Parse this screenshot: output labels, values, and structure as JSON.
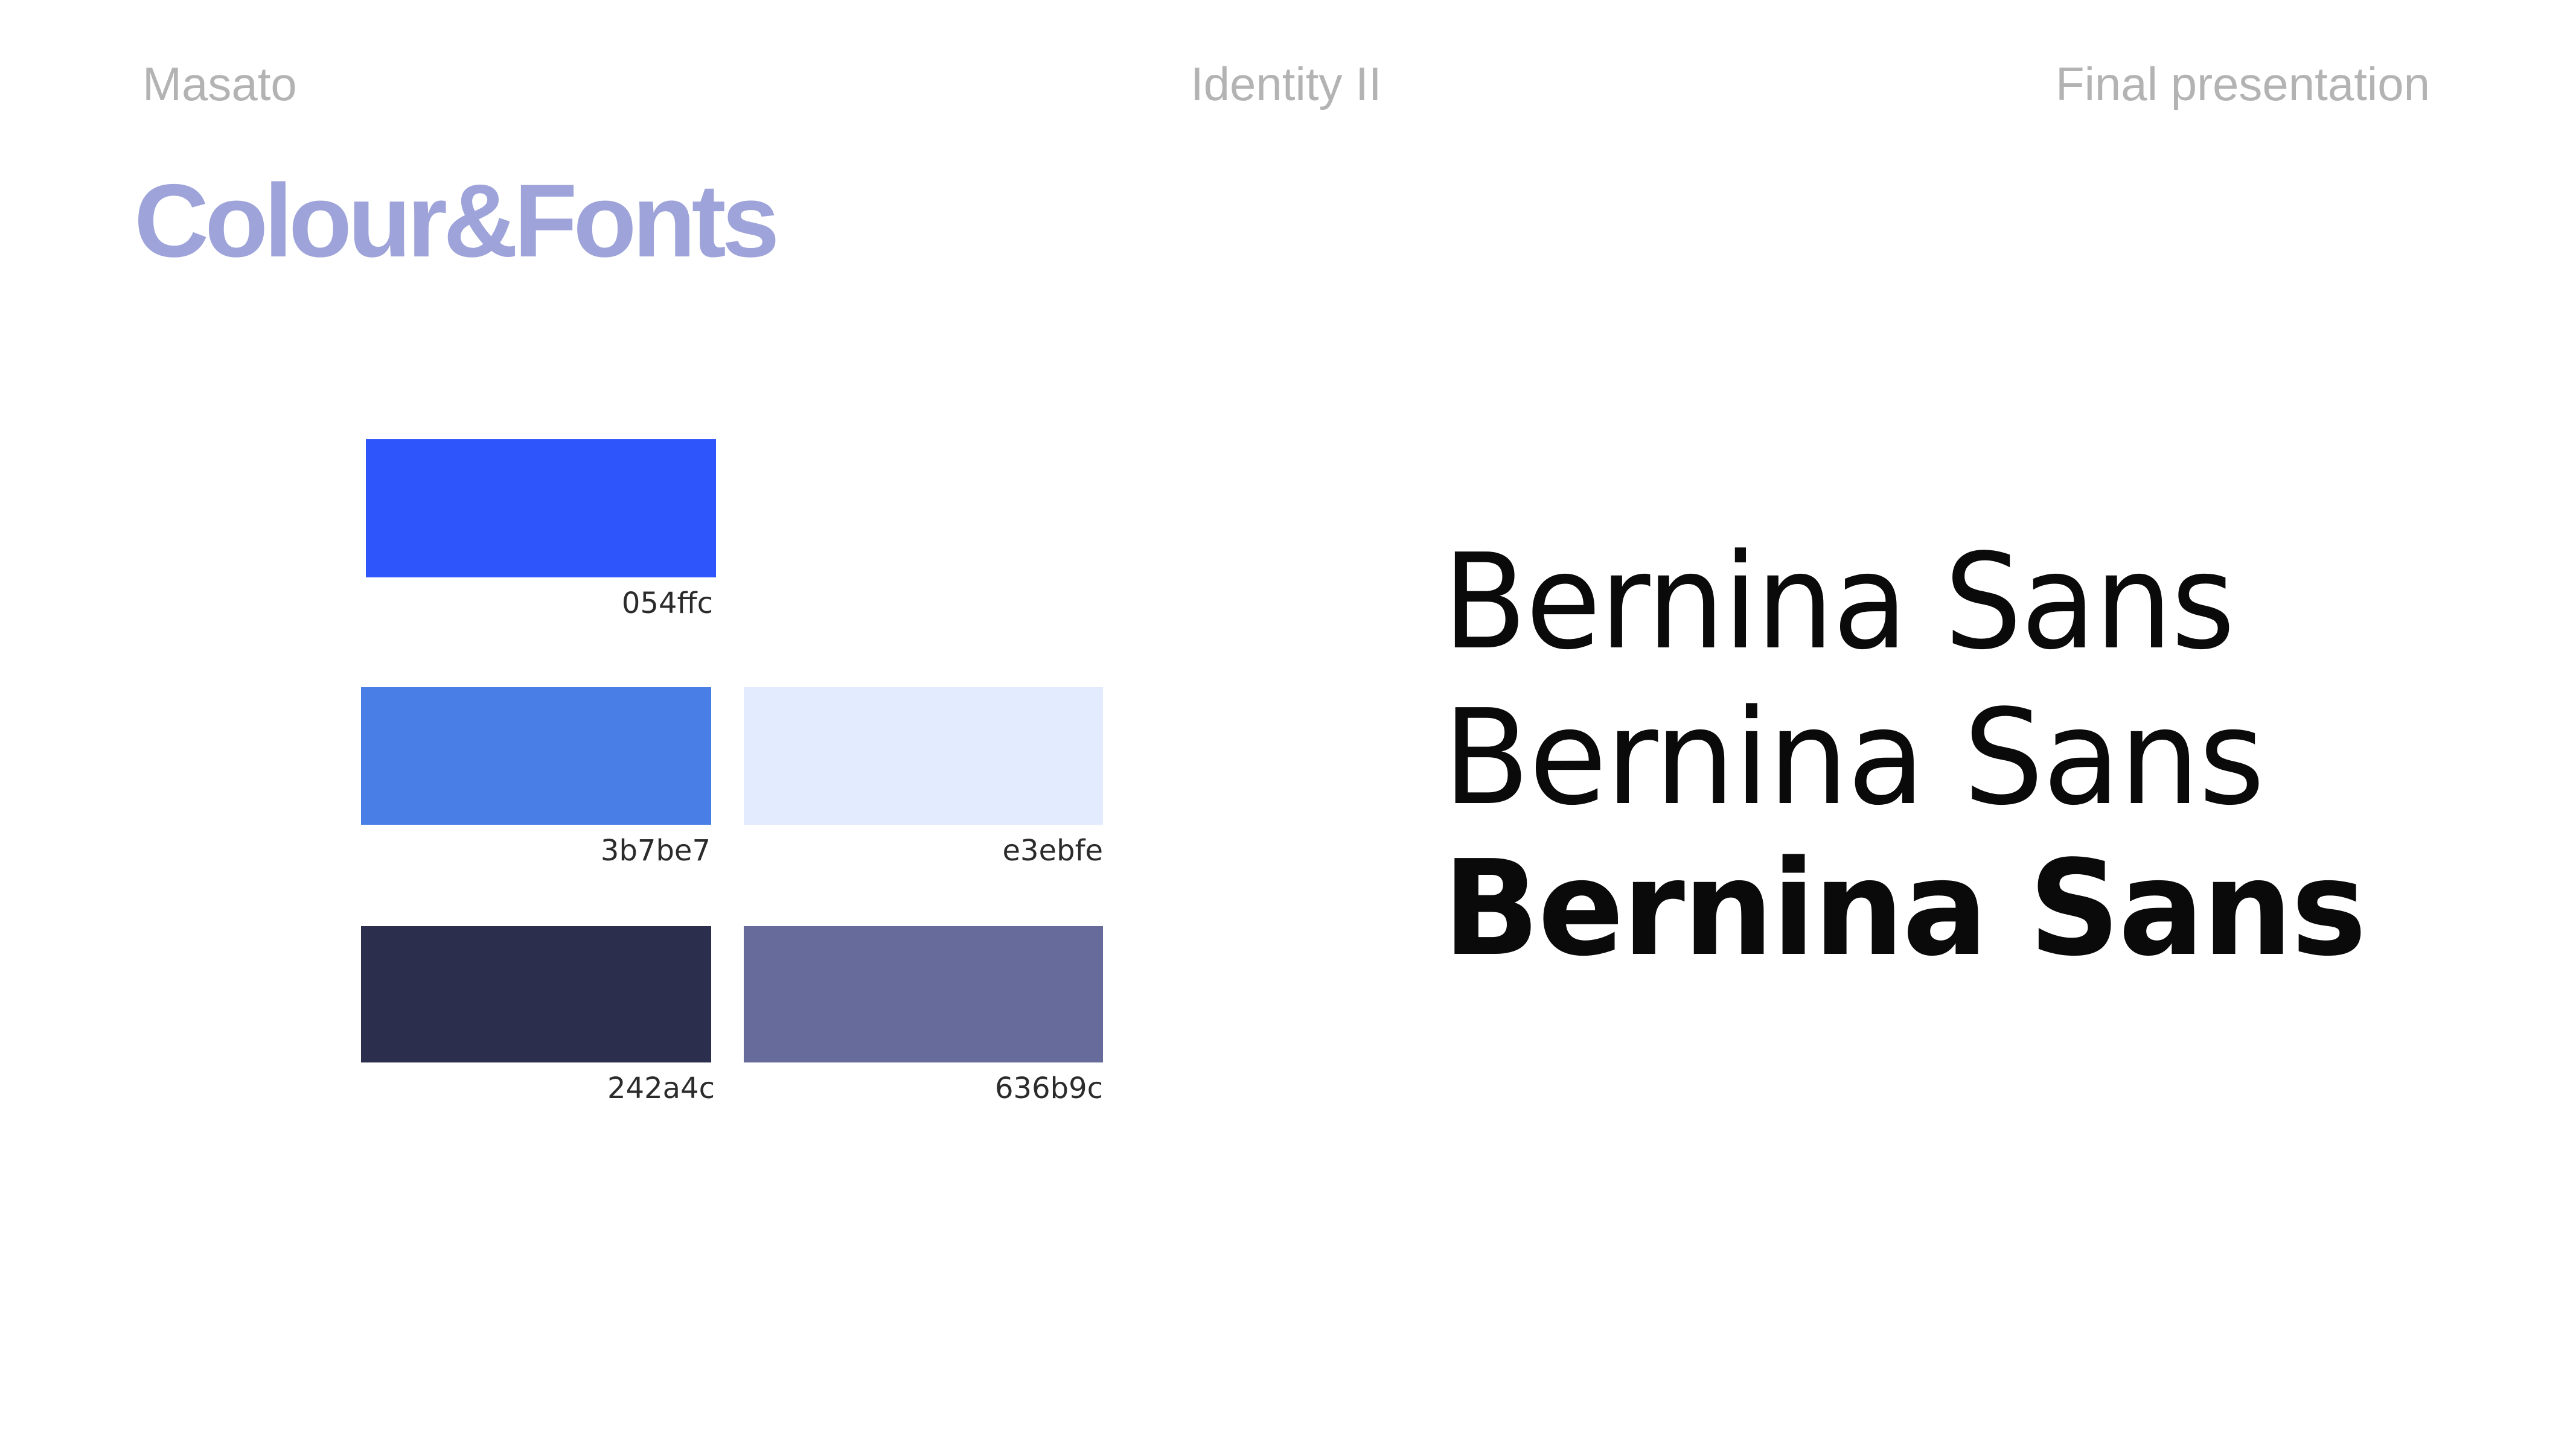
{
  "header": {
    "left": "Masato",
    "center": "Identity II",
    "right": "Final presentation"
  },
  "title": "Colour&Fonts",
  "palette": [
    {
      "code": "054ffc",
      "color": "#2e54fc"
    },
    {
      "code": "3b7be7",
      "color": "#4a7ee7"
    },
    {
      "code": "e3ebfe",
      "color": "#e3ebfe"
    },
    {
      "code": "242a4c",
      "color": "#2c2e4d"
    },
    {
      "code": "636b9c",
      "color": "#666b9b"
    }
  ],
  "fonts": {
    "light": "Bernina Sans",
    "regular": "Bernina Sans",
    "bold": "Bernina Sans"
  }
}
